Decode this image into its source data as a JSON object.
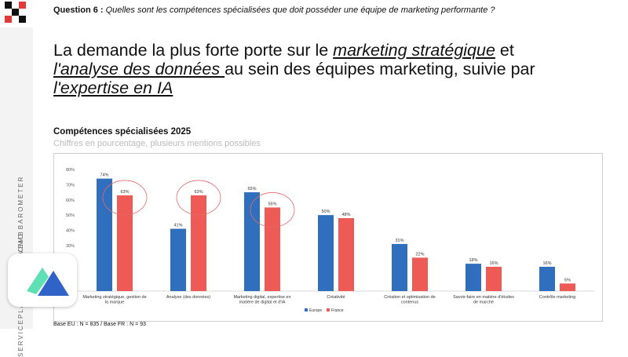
{
  "question": {
    "label": "Question 6 :",
    "text": "Quelles sont les compétences spécialisées que doit posséder une équipe de marketing performante ?"
  },
  "headline": {
    "part1": "La demande la plus forte porte sur le ",
    "em1": "marketing stratégique",
    "part2": " et ",
    "em2": "l'analyse des données ",
    "part3": "au sein des équipes marketing, suivie par ",
    "em3": "l'expertise en IA"
  },
  "sidebar": {
    "vertical_text": "SERVICEPLAN GROUP | CMO BAROMETER",
    "vertical_text_bottom": "NOVEMB"
  },
  "chart_data": {
    "type": "bar",
    "title": "Compétences spécialisées 2025",
    "subtitle": "Chiffres en pourcentage, plusieurs mentions possibles",
    "categories": [
      "Marketing stratégique, gestion de la marque",
      "Analyse (des données)",
      "Marketing digital, expertise en matière de digital et d'IA",
      "Créativité",
      "Création et optimisation de contenus",
      "Savoir-faire en matière d'études de marché",
      "Contrôle marketing"
    ],
    "series": [
      {
        "name": "Europe",
        "values": [
          74,
          41,
          65,
          50,
          31,
          18,
          16
        ],
        "labels": [
          "74%",
          "41%",
          "65%",
          "50%",
          "31%",
          "18%",
          "16%"
        ],
        "color": "#2f6fbd"
      },
      {
        "name": "France",
        "values": [
          63,
          63,
          55,
          48,
          22,
          16,
          5
        ],
        "labels": [
          "63%",
          "63%",
          "55%",
          "48%",
          "22%",
          "16%",
          "5%"
        ],
        "color": "#ee5a55"
      }
    ],
    "yticks": [
      "0%",
      "10%",
      "20%",
      "30%",
      "40%",
      "50%",
      "60%",
      "70%",
      "80%"
    ],
    "ylim": [
      0,
      80
    ],
    "highlighted_categories": [
      0,
      1,
      2
    ],
    "grid": false,
    "legend_position": "bottom-center"
  },
  "base_note": "Base EU : N = 835 / Base FR : N = 93"
}
